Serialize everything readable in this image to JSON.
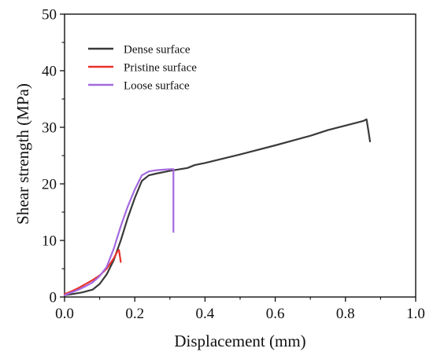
{
  "chart_data": {
    "type": "line",
    "title": "",
    "xlabel": "Displacement (mm)",
    "ylabel": "Shear strength (MPa)",
    "xlim": [
      0.0,
      1.0
    ],
    "ylim": [
      0,
      50
    ],
    "x_ticks": [
      0.0,
      0.2,
      0.4,
      0.6,
      0.8,
      1.0
    ],
    "x_tick_labels": [
      "0.0",
      "0.2",
      "0.4",
      "0.6",
      "0.8",
      "1.0"
    ],
    "y_ticks": [
      0,
      10,
      20,
      30,
      40,
      50
    ],
    "y_tick_labels": [
      "0",
      "10",
      "20",
      "30",
      "40",
      "50"
    ],
    "grid": false,
    "legend_position": "top-left",
    "series": [
      {
        "name": "Dense surface",
        "color": "#3a3a3a",
        "x": [
          0.0,
          0.02,
          0.05,
          0.08,
          0.1,
          0.12,
          0.14,
          0.16,
          0.18,
          0.2,
          0.22,
          0.24,
          0.26,
          0.3,
          0.35,
          0.37,
          0.4,
          0.5,
          0.6,
          0.7,
          0.75,
          0.8,
          0.85,
          0.86,
          0.865,
          0.87
        ],
        "y": [
          0.3,
          0.5,
          0.8,
          1.3,
          2.3,
          4.0,
          6.5,
          10.0,
          14.0,
          17.5,
          20.5,
          21.5,
          21.8,
          22.3,
          22.8,
          23.3,
          23.7,
          25.2,
          26.8,
          28.5,
          29.5,
          30.3,
          31.1,
          31.4,
          29.5,
          27.5
        ]
      },
      {
        "name": "Pristine surface",
        "color": "#e8322b",
        "x": [
          0.0,
          0.02,
          0.04,
          0.06,
          0.08,
          0.1,
          0.12,
          0.14,
          0.15,
          0.155,
          0.16
        ],
        "y": [
          0.5,
          1.0,
          1.6,
          2.3,
          3.0,
          3.8,
          5.0,
          6.8,
          8.0,
          8.3,
          6.2
        ]
      },
      {
        "name": "Loose surface",
        "color": "#a469e0",
        "x": [
          0.0,
          0.02,
          0.04,
          0.06,
          0.08,
          0.1,
          0.12,
          0.14,
          0.16,
          0.18,
          0.2,
          0.22,
          0.24,
          0.26,
          0.28,
          0.3,
          0.31,
          0.31
        ],
        "y": [
          0.3,
          0.8,
          1.3,
          1.9,
          2.6,
          3.7,
          5.3,
          8.5,
          12.5,
          16.0,
          19.0,
          21.5,
          22.2,
          22.4,
          22.5,
          22.6,
          22.6,
          11.5
        ]
      }
    ]
  }
}
